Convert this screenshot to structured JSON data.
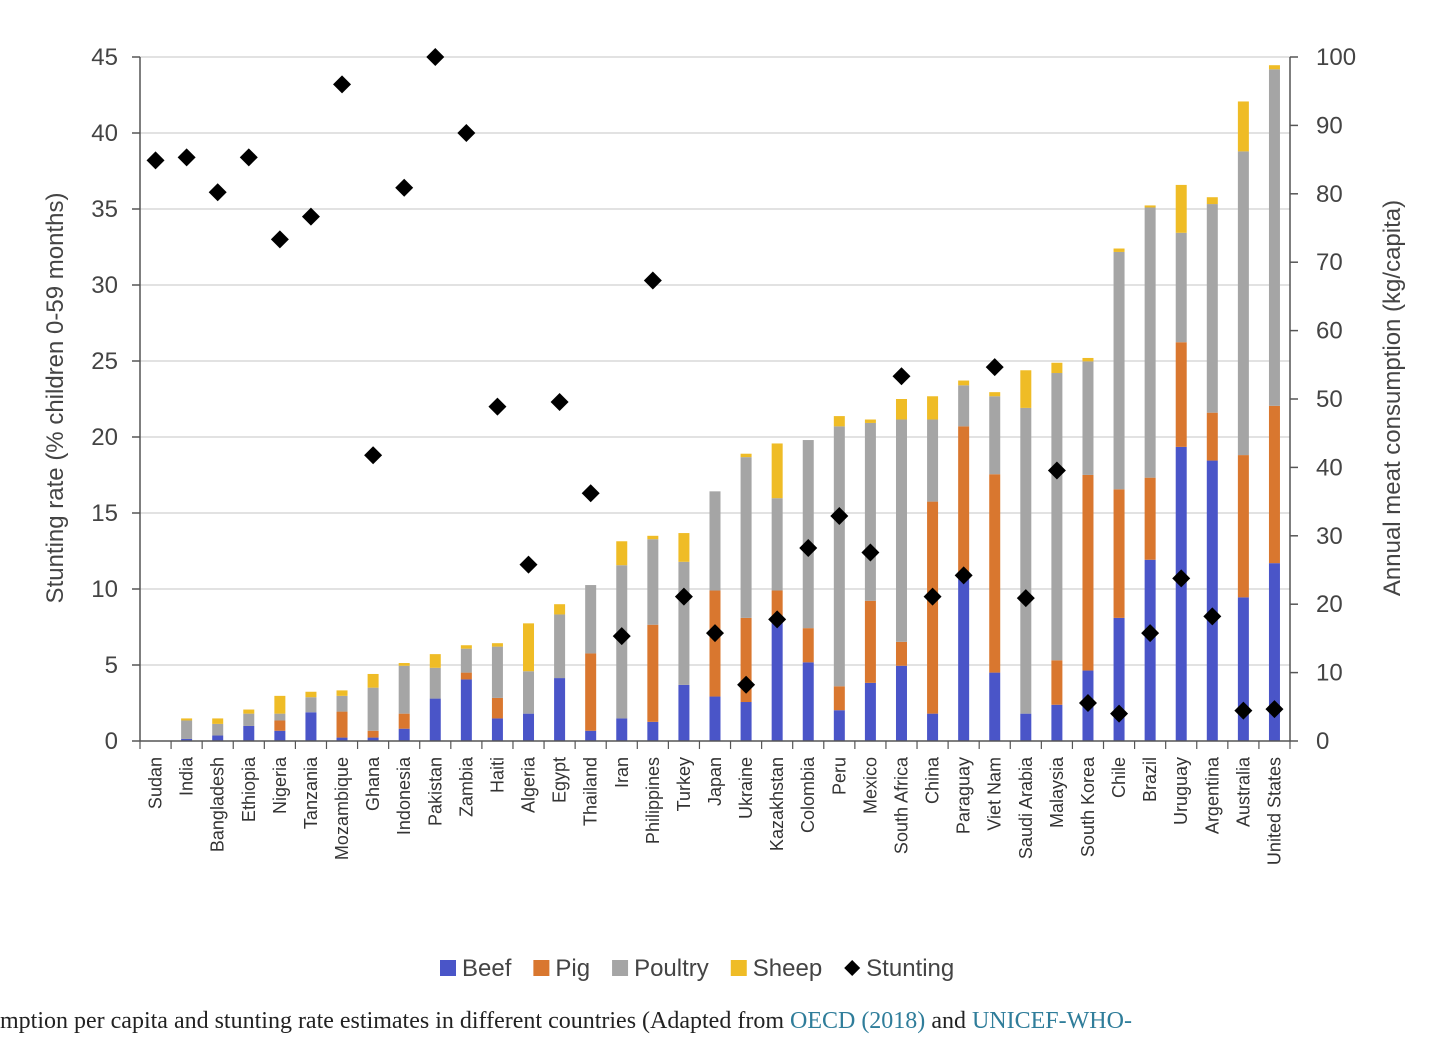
{
  "chart_data": {
    "type": "bar",
    "stacked": true,
    "categories": [
      "Sudan",
      "India",
      "Bangladesh",
      "Ethiopia",
      "Nigeria",
      "Tanzania",
      "Mozambique",
      "Ghana",
      "Indonesia",
      "Pakistan",
      "Zambia",
      "Haiti",
      "Algeria",
      "Egypt",
      "Thailand",
      "Iran",
      "Philippines",
      "Turkey",
      "Japan",
      "Ukraine",
      "Kazakhstan",
      "Colombia",
      "Peru",
      "Mexico",
      "South Africa",
      "China",
      "Paraguay",
      "Viet Nam",
      "Saudi Arabia",
      "Malaysia",
      "South Korea",
      "Chile",
      "Brazil",
      "Uruguay",
      "Argentina",
      "Australia",
      "United States"
    ],
    "series": [
      {
        "name": "Beef",
        "axis": "right",
        "color": "#4a55c8",
        "values": [
          0,
          0.3,
          0.8,
          2.2,
          1.5,
          4.2,
          0.5,
          0.5,
          1.8,
          6.2,
          9,
          3.3,
          4,
          9.2,
          1.5,
          3.3,
          2.8,
          8.2,
          6.5,
          5.7,
          17.5,
          11.5,
          4.5,
          8.5,
          11,
          4,
          24,
          10,
          4,
          5.3,
          10.3,
          18,
          26.5,
          43,
          41,
          21,
          26
        ]
      },
      {
        "name": "Pig",
        "axis": "right",
        "color": "#d9772f",
        "values": [
          0,
          0,
          0,
          0,
          1.5,
          0,
          3.8,
          1,
          2.2,
          0,
          1,
          3,
          0,
          0,
          11.3,
          0,
          14.2,
          0,
          15.5,
          12.3,
          4.5,
          5,
          3.5,
          12,
          3.5,
          31,
          22,
          29,
          0,
          6.5,
          28.6,
          18.8,
          12,
          15.3,
          7,
          20.8,
          23
        ]
      },
      {
        "name": "Poultry",
        "axis": "right",
        "color": "#a5a5a5",
        "values": [
          0,
          2.7,
          1.7,
          1.8,
          1,
          2.2,
          2.3,
          6.3,
          7,
          4.5,
          3.5,
          7.5,
          6.2,
          9.3,
          10,
          22.4,
          12.5,
          18,
          14.5,
          23.5,
          13.5,
          27.5,
          38,
          26,
          32.5,
          12,
          6,
          11.4,
          44.7,
          42,
          16.6,
          34.7,
          39.5,
          16,
          30.5,
          44.4,
          49.2
        ]
      },
      {
        "name": "Sheep",
        "axis": "right",
        "color": "#efbc26",
        "values": [
          0,
          0.3,
          0.8,
          0.6,
          2.6,
          0.8,
          0.8,
          2,
          0.4,
          2,
          0.5,
          0.5,
          7,
          1.5,
          0,
          3.5,
          0.5,
          4.2,
          0,
          0.5,
          8,
          0,
          1.5,
          0.5,
          3,
          3.4,
          0.7,
          0.6,
          5.5,
          1.5,
          0.5,
          0.5,
          0.3,
          7,
          1,
          7.3,
          0.6
        ]
      },
      {
        "name": "Stunting",
        "axis": "left",
        "type": "scatter",
        "color": "#000000",
        "values": [
          38.2,
          38.4,
          36.1,
          38.4,
          33,
          34.5,
          43.2,
          18.8,
          36.4,
          45,
          40,
          22,
          11.6,
          22.3,
          16.3,
          6.9,
          30.3,
          9.5,
          7.1,
          3.7,
          8,
          12.7,
          14.8,
          12.4,
          24,
          9.5,
          10.9,
          24.6,
          9.4,
          17.8,
          2.5,
          1.8,
          7.1,
          10.7,
          8.2,
          2,
          2.1
        ]
      }
    ],
    "ylabel": "Stunting rate (% children 0-59 months)",
    "ylabel_right": "Annual meat consumption (kg/capita)",
    "ylim": [
      0,
      45
    ],
    "ylim_right": [
      0,
      100
    ],
    "yticks": [
      "0",
      "5",
      "10",
      "15",
      "20",
      "25",
      "30",
      "35",
      "40",
      "45"
    ],
    "yticks_right": [
      "0",
      "10",
      "20",
      "30",
      "40",
      "50",
      "60",
      "70",
      "80",
      "90",
      "100"
    ],
    "grid": true,
    "legend_placement": "bottom"
  },
  "caption": {
    "text_start": "mption per capita and stunting rate estimates in different countries (Adapted from ",
    "cite1": "OECD (2018)",
    "and": " and ",
    "cite2": "UNICEF-WHO-"
  }
}
